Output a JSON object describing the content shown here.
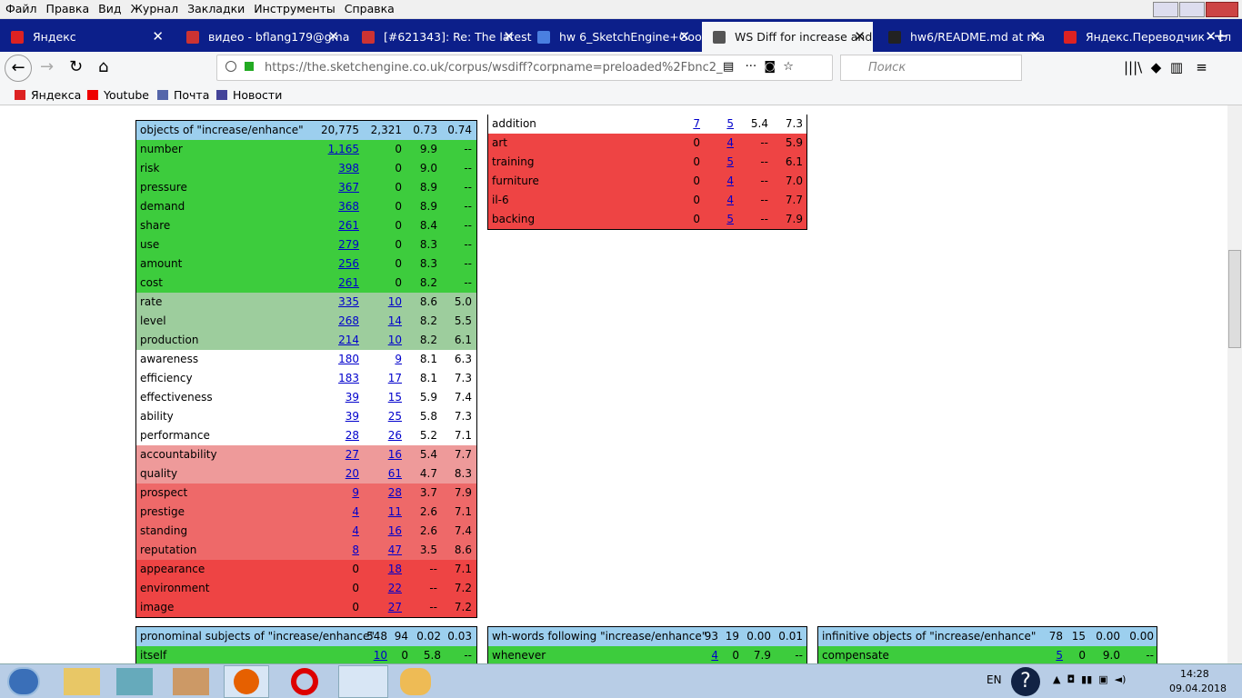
{
  "menu": [
    "Файл",
    "Правка",
    "Вид",
    "Журнал",
    "Закладки",
    "Инструменты",
    "Справка"
  ],
  "tabs": [
    "Яндекс",
    "видео - bflang179@gma",
    "[#621343]: Re: The latest",
    "hw 6_SketchEngine+Goo",
    "WS Diff for increase and",
    "hw6/README.md at ma",
    "Яндекс.Переводчик – сл"
  ],
  "address": "https://the.sketchengine.co.uk/corpus/wsdiff?corpname=preloaded%2Fbnc2_",
  "search_placeholder": "Поиск",
  "bookmarks": [
    "Яндекса",
    "Youtube",
    "Почта",
    "Новости"
  ],
  "tables": [
    {
      "header": {
        "title": "objects of \"increase/enhance\"",
        "freq1": "20,775",
        "freq2": "2,321",
        "score1": "0.73",
        "score2": "0.74"
      },
      "rows": [
        {
          "word": "number",
          "freq1": "1,165",
          "freq2": "0",
          "score1": "9.9",
          "score2": "--",
          "color": "#3dcc3d"
        },
        {
          "word": "risk",
          "freq1": "398",
          "freq2": "0",
          "score1": "9.0",
          "score2": "--",
          "color": "#3dcc3d"
        },
        {
          "word": "pressure",
          "freq1": "367",
          "freq2": "0",
          "score1": "8.9",
          "score2": "--",
          "color": "#3dcc3d"
        },
        {
          "word": "demand",
          "freq1": "368",
          "freq2": "0",
          "score1": "8.9",
          "score2": "--",
          "color": "#3dcc3d"
        },
        {
          "word": "share",
          "freq1": "261",
          "freq2": "0",
          "score1": "8.4",
          "score2": "--",
          "color": "#3dcc3d"
        },
        {
          "word": "use",
          "freq1": "279",
          "freq2": "0",
          "score1": "8.3",
          "score2": "--",
          "color": "#3dcc3d"
        },
        {
          "word": "amount",
          "freq1": "256",
          "freq2": "0",
          "score1": "8.3",
          "score2": "--",
          "color": "#3dcc3d"
        },
        {
          "word": "cost",
          "freq1": "261",
          "freq2": "0",
          "score1": "8.2",
          "score2": "--",
          "color": "#3dcc3d"
        },
        {
          "word": "rate",
          "freq1": "335",
          "freq2": "10",
          "score1": "8.6",
          "score2": "5.0",
          "color": "#9dcd9d"
        },
        {
          "word": "level",
          "freq1": "268",
          "freq2": "14",
          "score1": "8.2",
          "score2": "5.5",
          "color": "#9dcd9d"
        },
        {
          "word": "production",
          "freq1": "214",
          "freq2": "10",
          "score1": "8.2",
          "score2": "6.1",
          "color": "#9dcd9d"
        },
        {
          "word": "awareness",
          "freq1": "180",
          "freq2": "9",
          "score1": "8.1",
          "score2": "6.3",
          "color": "#ffffff"
        },
        {
          "word": "efficiency",
          "freq1": "183",
          "freq2": "17",
          "score1": "8.1",
          "score2": "7.3",
          "color": "#ffffff"
        },
        {
          "word": "effectiveness",
          "freq1": "39",
          "freq2": "15",
          "score1": "5.9",
          "score2": "7.4",
          "color": "#ffffff"
        },
        {
          "word": "ability",
          "freq1": "39",
          "freq2": "25",
          "score1": "5.8",
          "score2": "7.3",
          "color": "#ffffff"
        },
        {
          "word": "performance",
          "freq1": "28",
          "freq2": "26",
          "score1": "5.2",
          "score2": "7.1",
          "color": "#ffffff"
        },
        {
          "word": "accountability",
          "freq1": "27",
          "freq2": "16",
          "score1": "5.4",
          "score2": "7.7",
          "color": "#ee9a9a"
        },
        {
          "word": "quality",
          "freq1": "20",
          "freq2": "61",
          "score1": "4.7",
          "score2": "8.3",
          "color": "#ee9a9a"
        },
        {
          "word": "prospect",
          "freq1": "9",
          "freq2": "28",
          "score1": "3.7",
          "score2": "7.9",
          "color": "#ee6969"
        },
        {
          "word": "prestige",
          "freq1": "4",
          "freq2": "11",
          "score1": "2.6",
          "score2": "7.1",
          "color": "#ee6969"
        },
        {
          "word": "standing",
          "freq1": "4",
          "freq2": "16",
          "score1": "2.6",
          "score2": "7.4",
          "color": "#ee6969"
        },
        {
          "word": "reputation",
          "freq1": "8",
          "freq2": "47",
          "score1": "3.5",
          "score2": "8.6",
          "color": "#ee6969"
        },
        {
          "word": "appearance",
          "freq1": "0",
          "freq2": "18",
          "score1": "--",
          "score2": "7.1",
          "color": "#ee4444"
        },
        {
          "word": "environment",
          "freq1": "0",
          "freq2": "22",
          "score1": "--",
          "score2": "7.2",
          "color": "#ee4444"
        },
        {
          "word": "image",
          "freq1": "0",
          "freq2": "27",
          "score1": "--",
          "score2": "7.2",
          "color": "#ee4444"
        }
      ]
    },
    {
      "rows": [
        {
          "word": "addition",
          "freq1": "7",
          "freq2": "5",
          "score1": "5.4",
          "score2": "7.3",
          "color": "#ffffff"
        },
        {
          "word": "art",
          "freq1": "0",
          "freq2": "4",
          "score1": "--",
          "score2": "5.9",
          "color": "#ee4444"
        },
        {
          "word": "training",
          "freq1": "0",
          "freq2": "5",
          "score1": "--",
          "score2": "6.1",
          "color": "#ee4444"
        },
        {
          "word": "furniture",
          "freq1": "0",
          "freq2": "4",
          "score1": "--",
          "score2": "7.0",
          "color": "#ee4444"
        },
        {
          "word": "il-6",
          "freq1": "0",
          "freq2": "4",
          "score1": "--",
          "score2": "7.7",
          "color": "#ee4444"
        },
        {
          "word": "backing",
          "freq1": "0",
          "freq2": "5",
          "score1": "--",
          "score2": "7.9",
          "color": "#ee4444"
        }
      ]
    },
    {
      "header": {
        "title": "pronominal subjects of \"increase/enhance\"",
        "freq1": "548",
        "freq2": "94",
        "score1": "0.02",
        "score2": "0.03"
      },
      "rows": [
        {
          "word": "itself",
          "freq1": "10",
          "freq2": "0",
          "score1": "5.8",
          "score2": "--",
          "color": "#3dcc3d"
        }
      ]
    },
    {
      "header": {
        "title": "wh-words following \"increase/enhance\"",
        "freq1": "93",
        "freq2": "19",
        "score1": "0.00",
        "score2": "0.01"
      },
      "rows": [
        {
          "word": "whenever",
          "freq1": "4",
          "freq2": "0",
          "score1": "7.9",
          "score2": "--",
          "color": "#3dcc3d"
        }
      ]
    },
    {
      "header": {
        "title": "infinitive objects of \"increase/enhance\"",
        "freq1": "78",
        "freq2": "15",
        "score1": "0.00",
        "score2": "0.00"
      },
      "rows": [
        {
          "word": "compensate",
          "freq1": "5",
          "freq2": "0",
          "score1": "9.0",
          "score2": "--",
          "color": "#3dcc3d"
        }
      ]
    }
  ],
  "taskbar": {
    "language": "EN",
    "time": "14:28",
    "date": "09.04.2018"
  }
}
